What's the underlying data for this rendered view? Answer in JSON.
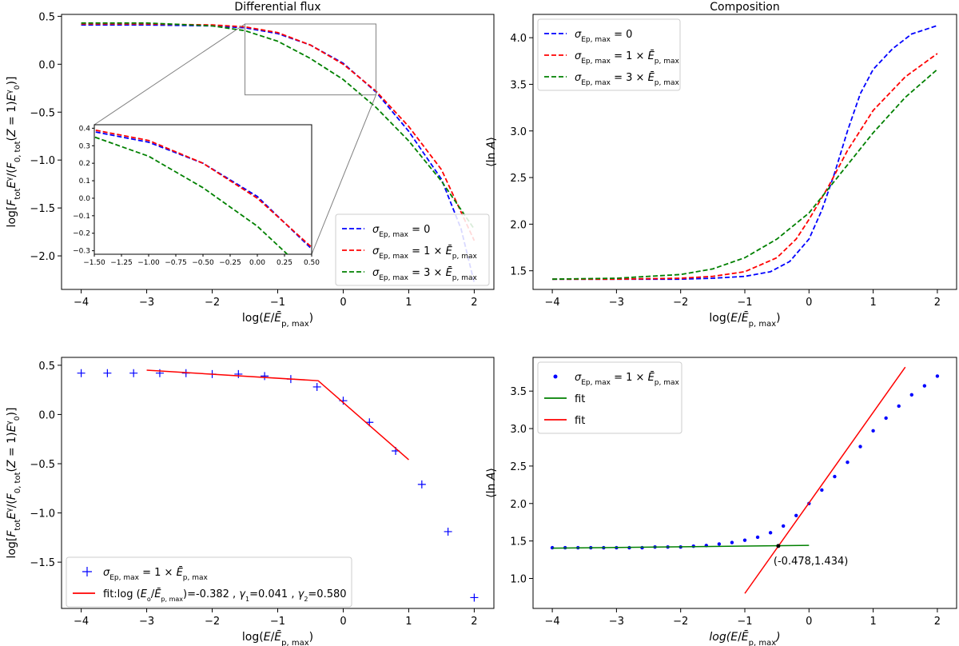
{
  "chart_data": [
    {
      "type": "line",
      "title": "Differential flux",
      "xlabel": "log(E/Ē_p,max)",
      "ylabel": "log[F_tot E^γ/(F_0,tot(Z=1) E_0^γ)]",
      "xlim": [
        -4.3,
        2.3
      ],
      "ylim": [
        -2.35,
        0.52
      ],
      "xticks": [
        -4,
        -3,
        -2,
        -1,
        0,
        1,
        2
      ],
      "xtick_labels": [
        "−4",
        "−3",
        "−2",
        "−1",
        "0",
        "1",
        "2"
      ],
      "yticks": [
        0.5,
        0.0,
        -0.5,
        -1.0,
        -1.5,
        -2.0
      ],
      "ytick_labels": [
        "0.5",
        "0.0",
        "−0.5",
        "−1.0",
        "−1.5",
        "−2.0"
      ],
      "legend": "lower-right",
      "series": [
        {
          "name": "σ_Ep,max = 0",
          "color": "#0000ff",
          "style": "dashed",
          "x": [
            -4,
            -3,
            -2,
            -1.5,
            -1,
            -0.5,
            0,
            0.5,
            1,
            1.5,
            1.8,
            2
          ],
          "y": [
            0.41,
            0.41,
            0.4,
            0.38,
            0.32,
            0.2,
            0.01,
            -0.29,
            -0.7,
            -1.2,
            -1.72,
            -2.28
          ]
        },
        {
          "name": "σ_Ep,max = 1 × Ē_p,max",
          "color": "#ff0000",
          "style": "dashed",
          "x": [
            -4,
            -3,
            -2,
            -1.5,
            -1,
            -0.5,
            0,
            0.5,
            1,
            1.5,
            2
          ],
          "y": [
            0.42,
            0.42,
            0.41,
            0.39,
            0.33,
            0.2,
            0.0,
            -0.28,
            -0.65,
            -1.1,
            -1.84
          ]
        },
        {
          "name": "σ_Ep,max = 3 × Ē_p,max",
          "color": "#008000",
          "style": "dashed",
          "x": [
            -4,
            -3,
            -2,
            -1.5,
            -1,
            -0.5,
            0,
            0.5,
            1,
            1.5,
            2
          ],
          "y": [
            0.43,
            0.43,
            0.4,
            0.35,
            0.24,
            0.06,
            -0.16,
            -0.45,
            -0.8,
            -1.22,
            -1.72
          ]
        }
      ],
      "zoom_box": {
        "x": [
          -1.5,
          0.5
        ],
        "y": [
          -0.32,
          0.42
        ]
      },
      "inset": {
        "xlim": [
          -1.5,
          0.5
        ],
        "ylim": [
          -0.32,
          0.42
        ],
        "xticks": [
          -1.5,
          -1.25,
          -1.0,
          -0.75,
          -0.5,
          -0.25,
          0.0,
          0.25,
          0.5
        ],
        "xtick_labels": [
          "−1.50",
          "−1.25",
          "−1.00",
          "−0.75",
          "−0.50",
          "−0.25",
          "0.00",
          "0.25",
          "0.50"
        ],
        "yticks": [
          0.4,
          0.3,
          0.2,
          0.1,
          0.0,
          -0.1,
          -0.2,
          -0.3
        ],
        "ytick_labels": [
          "0.4",
          "0.3",
          "0.2",
          "0.1",
          "0.0",
          "−0.1",
          "−0.2",
          "−0.3"
        ]
      }
    },
    {
      "type": "line",
      "title": "Composition",
      "xlabel": "log(E/Ē_p,max)",
      "ylabel": "⟨ln A⟩",
      "xlim": [
        -4.3,
        2.3
      ],
      "ylim": [
        1.3,
        4.25
      ],
      "xticks": [
        -4,
        -3,
        -2,
        -1,
        0,
        1,
        2
      ],
      "xtick_labels": [
        "−4",
        "−3",
        "−2",
        "−1",
        "0",
        "1",
        "2"
      ],
      "yticks": [
        1.5,
        2.0,
        2.5,
        3.0,
        3.5,
        4.0
      ],
      "ytick_labels": [
        "1.5",
        "2.0",
        "2.5",
        "3.0",
        "3.5",
        "4.0"
      ],
      "legend": "upper-left",
      "series": [
        {
          "name": "σ_Ep,max = 0",
          "color": "#0000ff",
          "style": "dashed",
          "x": [
            -4,
            -3,
            -2,
            -1.5,
            -1,
            -0.6,
            -0.3,
            0,
            0.2,
            0.4,
            0.6,
            0.8,
            1,
            1.3,
            1.6,
            2
          ],
          "y": [
            1.41,
            1.41,
            1.41,
            1.42,
            1.44,
            1.49,
            1.6,
            1.84,
            2.15,
            2.55,
            3.0,
            3.4,
            3.66,
            3.88,
            4.04,
            4.13
          ]
        },
        {
          "name": "σ_Ep,max = 1 × Ē_p,max",
          "color": "#ff0000",
          "style": "dashed",
          "x": [
            -4,
            -3,
            -2,
            -1.5,
            -1,
            -0.5,
            -0.2,
            0,
            0.3,
            0.6,
            1,
            1.5,
            2
          ],
          "y": [
            1.41,
            1.41,
            1.42,
            1.44,
            1.49,
            1.64,
            1.84,
            2.05,
            2.4,
            2.79,
            3.22,
            3.58,
            3.83
          ]
        },
        {
          "name": "σ_Ep,max = 3 × Ē_p,max",
          "color": "#008000",
          "style": "dashed",
          "x": [
            -4,
            -3,
            -2,
            -1.5,
            -1,
            -0.5,
            0,
            0.5,
            1,
            1.5,
            2
          ],
          "y": [
            1.41,
            1.42,
            1.46,
            1.52,
            1.64,
            1.84,
            2.12,
            2.55,
            2.98,
            3.36,
            3.66
          ]
        }
      ]
    },
    {
      "type": "scatter",
      "title": "",
      "xlabel": "log(E/Ē_p,max)",
      "ylabel": "log[F_tot E^γ/(F_0,tot(Z=1) E_0^γ)]",
      "xlim": [
        -4.3,
        2.3
      ],
      "ylim": [
        -1.97,
        0.58
      ],
      "xticks": [
        -4,
        -3,
        -2,
        -1,
        0,
        1,
        2
      ],
      "xtick_labels": [
        "−4",
        "−3",
        "−2",
        "−1",
        "0",
        "1",
        "2"
      ],
      "yticks": [
        0.5,
        0.0,
        -0.5,
        -1.0,
        -1.5
      ],
      "ytick_labels": [
        "0.5",
        "0.0",
        "−0.5",
        "−1.0",
        "−1.5"
      ],
      "legend": "lower-left",
      "series": [
        {
          "name": "σ_Ep,max = 1 × Ē_p,max",
          "color": "#0000ff",
          "marker": "+",
          "x": [
            -4,
            -3.6,
            -3.2,
            -2.8,
            -2.4,
            -2.0,
            -1.6,
            -1.2,
            -0.8,
            -0.4,
            0,
            0.4,
            0.8,
            1.2,
            1.6,
            2.0
          ],
          "y": [
            0.42,
            0.42,
            0.42,
            0.42,
            0.42,
            0.41,
            0.41,
            0.39,
            0.36,
            0.28,
            0.14,
            -0.08,
            -0.37,
            -0.71,
            -1.19,
            -1.86
          ]
        },
        {
          "name": "fit:log (E_o/Ē_p,max)=-0.382 , γ_1=0.041 , γ_2=0.580",
          "color": "#ff0000",
          "style": "solid",
          "x": [
            -3.0,
            -0.382,
            1.0
          ],
          "y": [
            0.45,
            0.343,
            -0.46
          ]
        }
      ]
    },
    {
      "type": "scatter",
      "title": "",
      "xlabel": "log(E/Ē_p,max)",
      "ylabel": "⟨ln A⟩",
      "xlim": [
        -4.3,
        2.3
      ],
      "ylim": [
        0.6,
        3.95
      ],
      "xticks": [
        -4,
        -3,
        -2,
        -1,
        0,
        1,
        2
      ],
      "xtick_labels": [
        "−4",
        "−3",
        "−2",
        "−1",
        "0",
        "1",
        "2"
      ],
      "yticks": [
        1.0,
        1.5,
        2.0,
        2.5,
        3.0,
        3.5
      ],
      "ytick_labels": [
        "1.0",
        "1.5",
        "2.0",
        "2.5",
        "3.0",
        "3.5"
      ],
      "legend": "upper-left",
      "annotation": {
        "text": "(-0.478,1.434)",
        "x": -0.478,
        "y": 1.434
      },
      "series": [
        {
          "name": "σ_Ep,max = 1 × Ē_p,max",
          "color": "#0000ff",
          "marker": "dot",
          "x": [
            -4.0,
            -3.8,
            -3.6,
            -3.4,
            -3.2,
            -3.0,
            -2.8,
            -2.6,
            -2.4,
            -2.2,
            -2.0,
            -1.8,
            -1.6,
            -1.4,
            -1.2,
            -1.0,
            -0.8,
            -0.6,
            -0.4,
            -0.2,
            0.0,
            0.2,
            0.4,
            0.6,
            0.8,
            1.0,
            1.2,
            1.4,
            1.6,
            1.8,
            2.0
          ],
          "y": [
            1.41,
            1.41,
            1.41,
            1.41,
            1.41,
            1.41,
            1.41,
            1.41,
            1.42,
            1.42,
            1.42,
            1.43,
            1.44,
            1.46,
            1.48,
            1.51,
            1.55,
            1.61,
            1.7,
            1.84,
            2.0,
            2.18,
            2.36,
            2.55,
            2.76,
            2.97,
            3.14,
            3.3,
            3.45,
            3.57,
            3.7
          ]
        },
        {
          "name": "fit",
          "color": "#008000",
          "style": "solid",
          "x": [
            -4.0,
            0.0
          ],
          "y": [
            1.404,
            1.441
          ]
        },
        {
          "name": "fit",
          "color": "#ff0000",
          "style": "solid",
          "x": [
            -1.0,
            1.5
          ],
          "y": [
            0.8,
            3.82
          ]
        }
      ]
    }
  ]
}
